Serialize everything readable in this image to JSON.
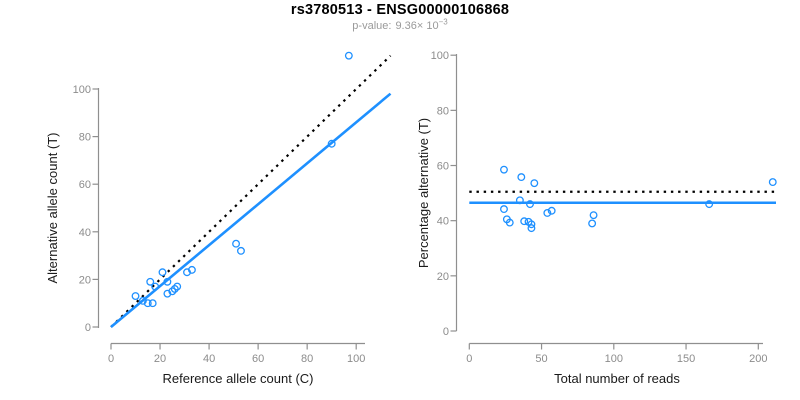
{
  "header": {
    "title": "rs3780513 - ENSG00000106868",
    "p_label": "p-value:",
    "p_mantissa": "9.36",
    "p_times": "× 10",
    "p_exponent": "−3"
  },
  "colors": {
    "accent_blue": "#1E90FF",
    "dotted_black": "#000000",
    "axis_line": "#8f8f8f",
    "tick_label": "#8c8c8c",
    "axis_title": "#1a1a1a",
    "title": "#000000",
    "subtitle": "#9a9a9a",
    "background": "#ffffff"
  },
  "chart_data": [
    {
      "id": "allele-count-scatter",
      "type": "scatter",
      "xlabel": "Reference allele count (C)",
      "ylabel": "Alternative allele count (T)",
      "xticks": [
        0,
        20,
        40,
        60,
        80,
        100
      ],
      "yticks": [
        0,
        20,
        40,
        60,
        80,
        100
      ],
      "xlim": [
        0,
        114
      ],
      "ylim": [
        0,
        115
      ],
      "grid": false,
      "marker": "open-circle",
      "points": [
        [
          10,
          13
        ],
        [
          13,
          11
        ],
        [
          15,
          10
        ],
        [
          17,
          10
        ],
        [
          16,
          19
        ],
        [
          18,
          17
        ],
        [
          21,
          23
        ],
        [
          23,
          14
        ],
        [
          23,
          19
        ],
        [
          25,
          15
        ],
        [
          26,
          16
        ],
        [
          27,
          17
        ],
        [
          31,
          23
        ],
        [
          33,
          24
        ],
        [
          51,
          35
        ],
        [
          53,
          32
        ],
        [
          90,
          77
        ],
        [
          97,
          114
        ]
      ],
      "lines": [
        {
          "name": "identity-line",
          "style": "dotted",
          "color": "black",
          "slope": 1,
          "intercept": 0
        },
        {
          "name": "fit-line",
          "style": "solid",
          "color": "blue",
          "slope": 0.86,
          "intercept": 0
        }
      ]
    },
    {
      "id": "percentage-vs-reads-scatter",
      "type": "scatter",
      "xlabel": "Total number of reads",
      "ylabel": "Percentage alternative (T)",
      "xticks": [
        0,
        50,
        100,
        150,
        200
      ],
      "yticks": [
        0,
        20,
        40,
        60,
        80,
        100
      ],
      "xlim": [
        0,
        212
      ],
      "ylim": [
        0,
        100
      ],
      "grid": false,
      "marker": "open-circle",
      "points": [
        [
          24,
          58.5
        ],
        [
          36,
          55.8
        ],
        [
          45,
          53.6
        ],
        [
          35,
          47.4
        ],
        [
          42,
          46
        ],
        [
          24,
          44.2
        ],
        [
          26,
          40.5
        ],
        [
          28,
          39.3
        ],
        [
          38,
          39.8
        ],
        [
          41,
          39.6
        ],
        [
          43,
          38.7
        ],
        [
          43,
          37.3
        ],
        [
          54,
          42.8
        ],
        [
          57,
          43.6
        ],
        [
          85,
          39
        ],
        [
          86,
          42
        ],
        [
          166,
          46
        ],
        [
          210,
          54
        ]
      ],
      "lines": [
        {
          "name": "expected-line",
          "style": "dotted",
          "color": "black",
          "y": 50.5
        },
        {
          "name": "mean-line",
          "style": "solid",
          "color": "blue",
          "y": 46.5
        }
      ]
    }
  ]
}
